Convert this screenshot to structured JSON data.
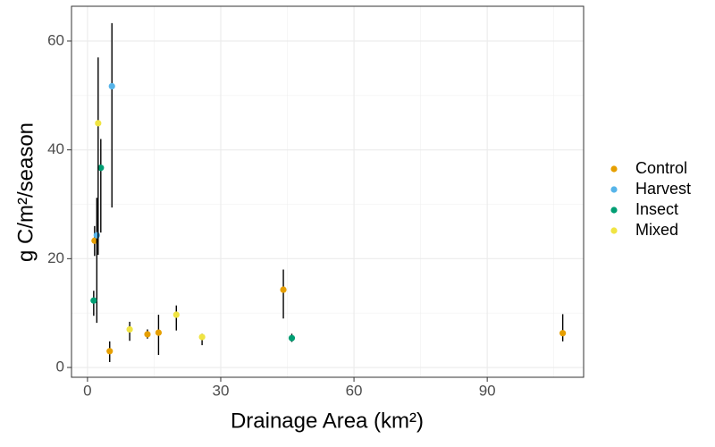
{
  "chart_data": {
    "type": "scatter",
    "x_label": "Drainage Area (km²)",
    "y_label": "g C/m²/season",
    "xlim": [
      -3.6,
      111.7
    ],
    "ylim": [
      -1.8,
      66.4
    ],
    "xticks": [
      0,
      30,
      60,
      90
    ],
    "yticks": [
      0,
      20,
      40,
      60
    ],
    "minor_xticks": [
      15,
      45,
      75,
      105
    ],
    "minor_yticks": [
      10,
      30,
      50
    ],
    "grid": true,
    "legend": "right",
    "series": [
      {
        "name": "Control",
        "color": "#E69F00",
        "x": [
          1.6,
          5.0,
          13.5,
          16.0,
          44.1,
          107.0
        ],
        "values": [
          23.3,
          3.0,
          6.1,
          6.4,
          14.3,
          6.3
        ],
        "low": [
          20.5,
          1.0,
          5.3,
          2.3,
          9.0,
          4.8
        ],
        "high": [
          26.0,
          4.8,
          7.0,
          9.7,
          18.0,
          9.8
        ]
      },
      {
        "name": "Harvest",
        "color": "#56B4E9",
        "x": [
          2.1,
          5.5
        ],
        "values": [
          24.3,
          51.7
        ],
        "low": [
          8.2,
          29.4
        ],
        "high": [
          31.2,
          63.3
        ]
      },
      {
        "name": "Insect",
        "color": "#009E73",
        "x": [
          1.4,
          3.0,
          46.0
        ],
        "values": [
          12.3,
          36.7,
          5.4
        ],
        "low": [
          9.5,
          24.8,
          4.7
        ],
        "high": [
          14.1,
          42.0,
          6.2
        ]
      },
      {
        "name": "Mixed",
        "color": "#F0E442",
        "x": [
          2.4,
          9.5,
          20.0,
          25.8
        ],
        "values": [
          44.9,
          7.0,
          9.7,
          5.6
        ],
        "low": [
          20.7,
          4.9,
          6.8,
          4.1
        ],
        "high": [
          57.0,
          8.4,
          11.4,
          6.2
        ]
      }
    ]
  }
}
